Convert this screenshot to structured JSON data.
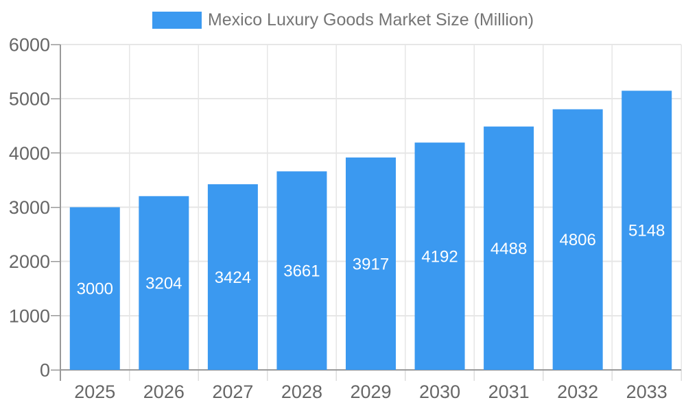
{
  "chart_data": {
    "type": "bar",
    "title": "Mexico Luxury Goods Market Size (Million)",
    "legend_position": "top",
    "categories": [
      "2025",
      "2026",
      "2027",
      "2028",
      "2029",
      "2030",
      "2031",
      "2032",
      "2033"
    ],
    "series": [
      {
        "name": "Mexico Luxury Goods Market Size (Million)",
        "values": [
          3000,
          3204,
          3424,
          3661,
          3917,
          4192,
          4488,
          4806,
          5148
        ]
      }
    ],
    "data_labels_shown": true,
    "ylim": [
      0,
      6000
    ],
    "yticks": [
      0,
      1000,
      2000,
      3000,
      4000,
      5000,
      6000
    ],
    "grid": "both",
    "colors": {
      "bar": "#3B99F0",
      "bar_label_text": "#FFFFFF",
      "axis_tick_text": "#666666",
      "legend_text": "#757575",
      "gridline": "#E6E6E6",
      "axis_line": "#999999",
      "minor_tick": "#DDDDDD",
      "background": "#FFFFFF"
    }
  }
}
